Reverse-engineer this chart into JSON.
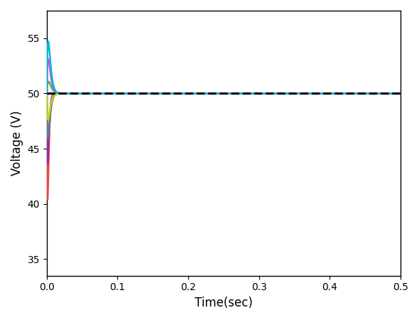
{
  "title": "",
  "xlabel": "Time(sec)",
  "ylabel": "Voltage (V)",
  "xlim": [
    0,
    0.5
  ],
  "ylim": [
    33.5,
    57.5
  ],
  "yticks": [
    35,
    40,
    45,
    50,
    55
  ],
  "xticks": [
    0.0,
    0.1,
    0.2,
    0.3,
    0.4,
    0.5
  ],
  "reference_value": 50.0,
  "curves": [
    {
      "color": "#00bcd4",
      "amplitude": 6.5,
      "tau_peak": 0.003,
      "tau_decay": 0.008,
      "sign": 1
    },
    {
      "color": "#e040fb",
      "amplitude": 4.3,
      "tau_peak": 0.003,
      "tau_decay": 0.008,
      "sign": 1
    },
    {
      "color": "#4caf50",
      "amplitude": 1.7,
      "tau_peak": 0.004,
      "tau_decay": 0.007,
      "sign": 1
    },
    {
      "color": "#c6d400",
      "amplitude": 3.5,
      "tau_peak": 0.003,
      "tau_decay": 0.006,
      "sign": -1
    },
    {
      "color": "#607d8b",
      "amplitude": 6.5,
      "tau_peak": 0.003,
      "tau_decay": 0.005,
      "sign": -1
    },
    {
      "color": "#9c27b0",
      "amplitude": 9.5,
      "tau_peak": 0.002,
      "tau_decay": 0.004,
      "sign": -1
    },
    {
      "color": "#f44336",
      "amplitude": 16.0,
      "tau_peak": 0.002,
      "tau_decay": 0.003,
      "sign": -1
    }
  ],
  "dashed_line_color": "black",
  "dashed_line_lw": 2.2,
  "line_lw": 1.8,
  "figsize": [
    5.9,
    4.5
  ],
  "dpi": 100
}
